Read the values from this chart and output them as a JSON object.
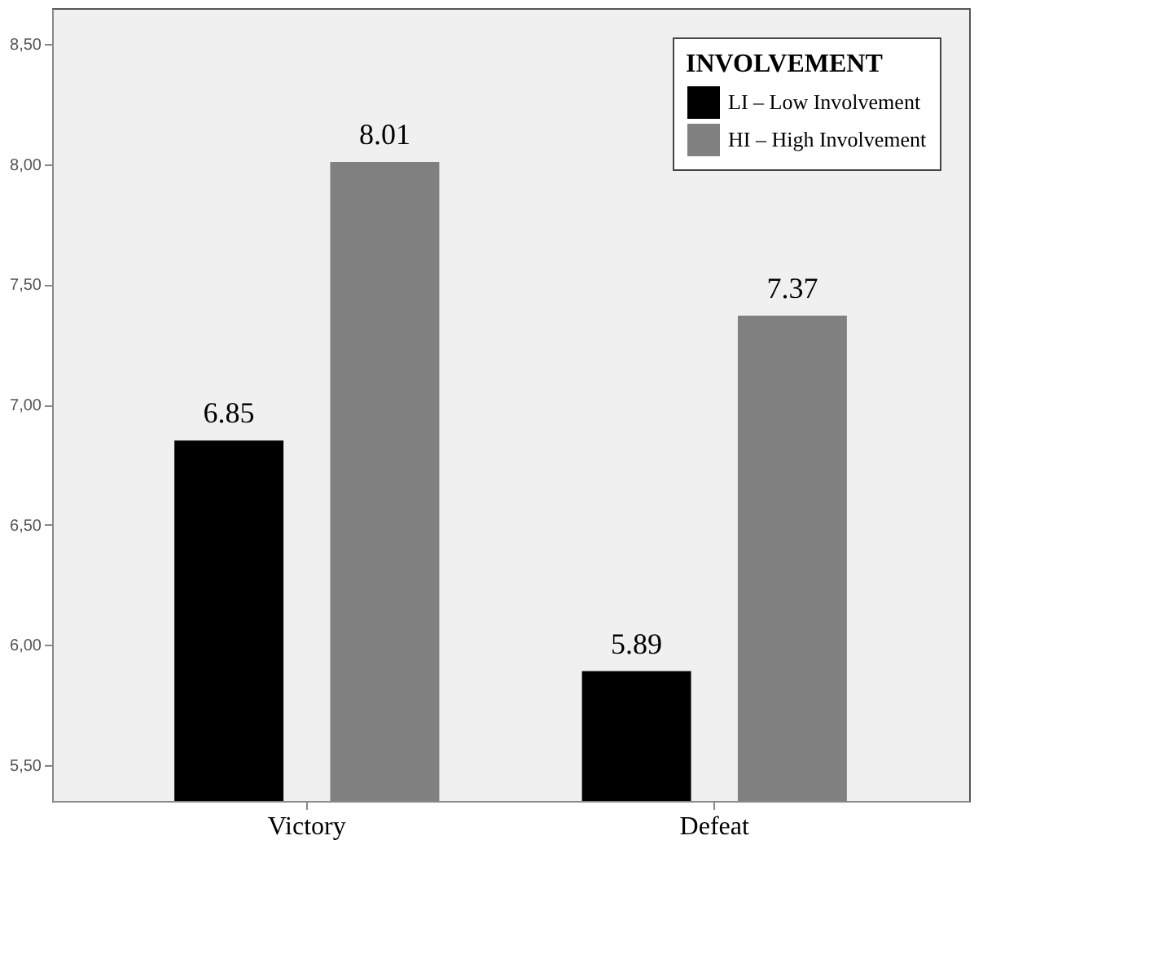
{
  "chart_data": {
    "type": "bar",
    "legend_title": "INVOLVEMENT",
    "categories": [
      "Victory",
      "Defeat"
    ],
    "series": [
      {
        "name": "LI – Low Involvement",
        "color": "#000000",
        "values": [
          6.85,
          5.89
        ]
      },
      {
        "name": "HI – High Involvement",
        "color": "#808080",
        "values": [
          8.01,
          7.37
        ]
      }
    ],
    "ylim": [
      5.35,
      8.65
    ],
    "yticks": [
      {
        "value": 5.5,
        "label": "5,50"
      },
      {
        "value": 6.0,
        "label": "6,00"
      },
      {
        "value": 6.5,
        "label": "6,50"
      },
      {
        "value": 7.0,
        "label": "7,00"
      },
      {
        "value": 7.5,
        "label": "7,50"
      },
      {
        "value": 8.0,
        "label": "8,00"
      },
      {
        "value": 8.5,
        "label": "8,50"
      }
    ],
    "grid": false,
    "legend": "top right",
    "data_labels": true
  }
}
